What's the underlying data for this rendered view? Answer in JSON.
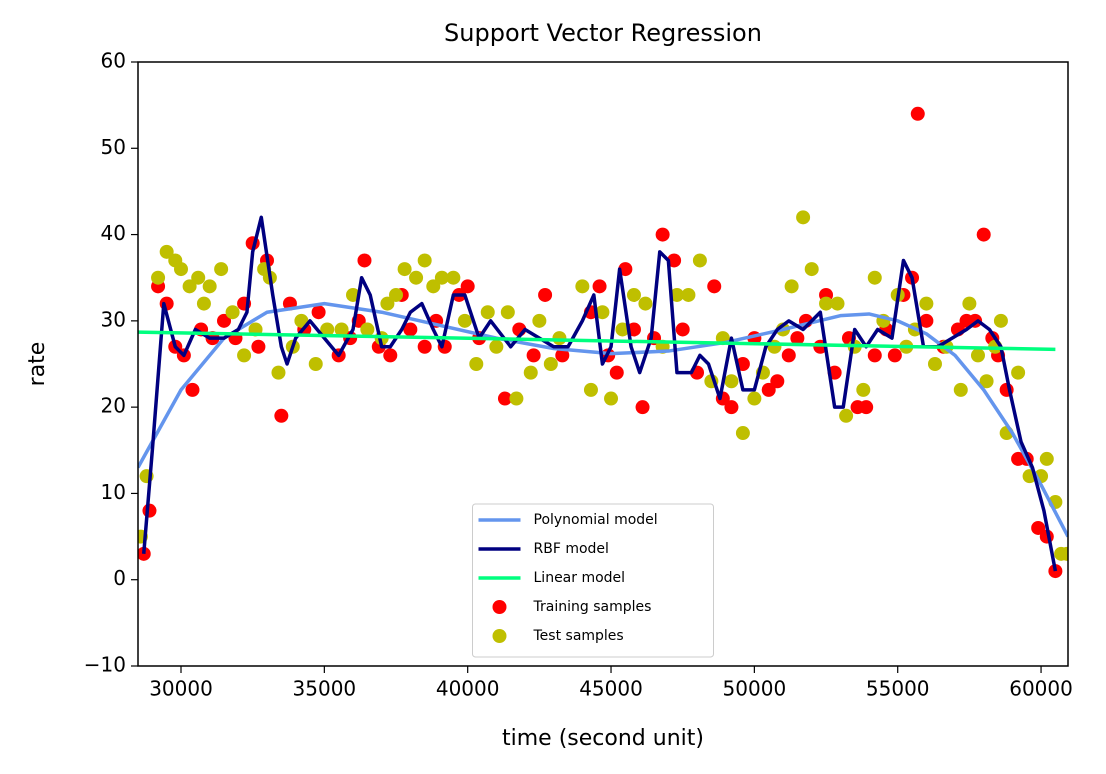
{
  "chart_data": {
    "type": "line",
    "title": "Support Vector Regression",
    "xlabel": "time (second unit)",
    "ylabel": "rate",
    "xlim": [
      28500,
      60940
    ],
    "ylim": [
      -10,
      60
    ],
    "xticks": [
      30000,
      35000,
      40000,
      45000,
      50000,
      55000,
      60000
    ],
    "yticks": [
      {
        "value": -10,
        "label": "−10"
      },
      0,
      10,
      20,
      30,
      40,
      50,
      60
    ],
    "legend": "lower center",
    "series": [
      {
        "name": "Polynomial model",
        "color": "#6495ed",
        "type": "line",
        "x": [
          28500,
          30000,
          31500,
          33000,
          35000,
          37000,
          39000,
          41000,
          43000,
          45000,
          47000,
          49000,
          51000,
          53000,
          54000,
          55000,
          56000,
          57000,
          58000,
          59000,
          60000,
          60940
        ],
        "values": [
          13,
          22,
          28,
          31,
          32,
          31,
          29.5,
          28,
          26.8,
          26.2,
          26.5,
          27.5,
          29,
          30.6,
          30.8,
          30,
          28.5,
          26,
          22,
          17,
          11,
          5
        ]
      },
      {
        "name": "RBF model",
        "color": "#000080",
        "type": "line",
        "x": [
          28700,
          29000,
          29400,
          29800,
          30100,
          30500,
          31000,
          31500,
          32000,
          32300,
          32500,
          32800,
          33200,
          33500,
          33700,
          34000,
          34500,
          35000,
          35500,
          36000,
          36300,
          36600,
          37000,
          37300,
          37700,
          38000,
          38400,
          38800,
          39100,
          39500,
          39900,
          40400,
          40800,
          41500,
          42000,
          42500,
          43000,
          43500,
          44000,
          44400,
          44700,
          45000,
          45300,
          45700,
          46000,
          46400,
          46700,
          47000,
          47300,
          47800,
          48100,
          48400,
          48800,
          49200,
          49600,
          50000,
          50400,
          50800,
          51200,
          51700,
          52300,
          52800,
          53100,
          53500,
          53900,
          54300,
          54800,
          55200,
          55500,
          55900,
          56400,
          56900,
          57400,
          57800,
          58200,
          58600,
          58900,
          59300,
          59700,
          60100,
          60500
        ],
        "values": [
          3,
          15,
          32,
          27,
          26,
          29,
          28,
          28,
          29,
          31,
          38,
          42,
          33,
          27,
          25,
          28,
          30,
          28,
          26,
          29,
          35,
          33,
          27,
          27,
          29,
          31,
          32,
          29,
          27,
          33,
          33,
          28,
          30,
          27,
          29,
          28,
          27,
          27,
          30,
          33,
          25,
          27,
          36,
          27,
          24,
          28,
          38,
          37,
          24,
          24,
          26,
          25,
          21,
          28,
          22,
          22,
          27,
          29,
          30,
          29,
          31,
          20,
          20,
          29,
          27,
          29,
          28,
          37,
          35,
          27,
          27,
          28,
          29,
          30,
          29,
          27,
          22,
          16,
          13,
          8,
          1
        ]
      },
      {
        "name": "Linear model",
        "color": "#00ff7f",
        "type": "line",
        "x": [
          28500,
          60500
        ],
        "values": [
          28.7,
          26.7
        ]
      },
      {
        "name": "Training samples",
        "color": "#ff0000",
        "type": "scatter",
        "x": [
          28700,
          28900,
          29200,
          29500,
          29800,
          30100,
          30400,
          30700,
          31100,
          31500,
          31900,
          32200,
          32500,
          32700,
          33000,
          33500,
          33800,
          34300,
          34800,
          35500,
          35900,
          36200,
          36400,
          36900,
          37300,
          37700,
          38000,
          38500,
          38900,
          39200,
          39700,
          40000,
          40400,
          41300,
          41800,
          42300,
          42700,
          43300,
          44300,
          44600,
          44900,
          45200,
          45500,
          45800,
          46100,
          46500,
          46800,
          47200,
          47500,
          48000,
          48600,
          48900,
          49200,
          49600,
          50000,
          50500,
          50800,
          51200,
          51500,
          51800,
          52300,
          52500,
          52800,
          53300,
          53600,
          53900,
          54200,
          54600,
          54900,
          55200,
          55500,
          55700,
          56000,
          56600,
          57100,
          57400,
          57700,
          58000,
          58300,
          58500,
          58800,
          59200,
          59500,
          59900,
          60200,
          60500
        ],
        "values": [
          3,
          8,
          34,
          32,
          27,
          26,
          22,
          29,
          28,
          30,
          28,
          32,
          39,
          27,
          37,
          19,
          32,
          29,
          31,
          26,
          28,
          30,
          37,
          27,
          26,
          33,
          29,
          27,
          30,
          27,
          33,
          34,
          28,
          21,
          29,
          26,
          33,
          26,
          31,
          34,
          26,
          24,
          36,
          29,
          20,
          28,
          40,
          37,
          29,
          24,
          34,
          21,
          20,
          25,
          28,
          22,
          23,
          26,
          28,
          30,
          27,
          33,
          24,
          28,
          20,
          20,
          26,
          29,
          26,
          33,
          35,
          54,
          30,
          27,
          29,
          30,
          30,
          40,
          28,
          26,
          22,
          14,
          14,
          6,
          5,
          1
        ]
      },
      {
        "name": "Test samples",
        "color": "#bfbf00",
        "type": "scatter",
        "x": [
          28600,
          28800,
          29200,
          29500,
          29800,
          30000,
          30300,
          30600,
          30800,
          31000,
          31400,
          31800,
          32200,
          32600,
          32900,
          33100,
          33400,
          33900,
          34200,
          34700,
          35100,
          35600,
          36000,
          36500,
          37000,
          37200,
          37500,
          37800,
          38200,
          38500,
          38800,
          39100,
          39500,
          39900,
          40300,
          40700,
          41000,
          41400,
          41700,
          42200,
          42500,
          42900,
          43200,
          44000,
          44300,
          44700,
          45000,
          45400,
          45800,
          46200,
          46800,
          47300,
          47700,
          48100,
          48500,
          48900,
          49200,
          49600,
          50000,
          50300,
          50700,
          51000,
          51300,
          51700,
          52000,
          52500,
          52900,
          53200,
          53500,
          53800,
          54200,
          54500,
          55000,
          55300,
          55600,
          56000,
          56300,
          56700,
          57200,
          57500,
          57800,
          58100,
          58400,
          58600,
          58800,
          59200,
          59600,
          60000,
          60200,
          60500,
          60700,
          60900
        ],
        "values": [
          5,
          12,
          35,
          38,
          37,
          36,
          34,
          35,
          32,
          34,
          36,
          31,
          26,
          29,
          36,
          35,
          24,
          27,
          30,
          25,
          29,
          29,
          33,
          29,
          28,
          32,
          33,
          36,
          35,
          37,
          34,
          35,
          35,
          30,
          25,
          31,
          27,
          31,
          21,
          24,
          30,
          25,
          28,
          34,
          22,
          31,
          21,
          29,
          33,
          32,
          27,
          33,
          33,
          37,
          23,
          28,
          23,
          17,
          21,
          24,
          27,
          29,
          34,
          42,
          36,
          32,
          32,
          19,
          27,
          22,
          35,
          30,
          33,
          27,
          29,
          32,
          25,
          27,
          22,
          32,
          26,
          23,
          27,
          30,
          17,
          24,
          12,
          12,
          14,
          9,
          3,
          3
        ]
      }
    ]
  }
}
